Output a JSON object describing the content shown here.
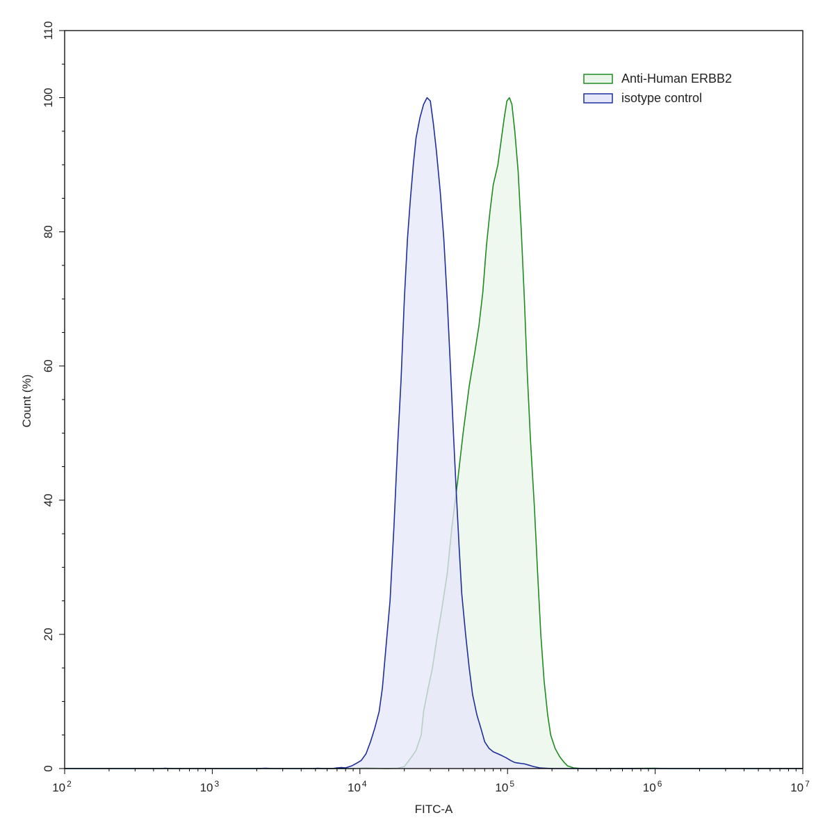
{
  "chart_data": {
    "type": "area",
    "xlabel": "FITC-A",
    "ylabel": "Count  (%)",
    "x_scale": "log",
    "xlim": [
      100,
      10000000
    ],
    "ylim": [
      0,
      110
    ],
    "x_ticks": [
      {
        "value": 100,
        "base": "10",
        "exp": "2"
      },
      {
        "value": 1000,
        "base": "10",
        "exp": "3"
      },
      {
        "value": 10000,
        "base": "10",
        "exp": "4"
      },
      {
        "value": 100000,
        "base": "10",
        "exp": "5"
      },
      {
        "value": 1000000,
        "base": "10",
        "exp": "6"
      },
      {
        "value": 10000000,
        "base": "10",
        "exp": "7"
      }
    ],
    "y_ticks": [
      "0",
      "20",
      "40",
      "60",
      "80",
      "100",
      "110"
    ],
    "grid": false,
    "legend_position": "top-right",
    "series": [
      {
        "name": "Anti-Human ERBB2",
        "stroke": "#1f8a1f",
        "fill": "#e8f5e8",
        "points": [
          [
            100,
            0
          ],
          [
            6500,
            0
          ],
          [
            9000,
            0
          ],
          [
            11000,
            0.1
          ],
          [
            15000,
            0
          ],
          [
            18000,
            0.05
          ],
          [
            20000,
            0.3
          ],
          [
            22000,
            1.5
          ],
          [
            24000,
            2.7
          ],
          [
            26000,
            5
          ],
          [
            27000,
            8.5
          ],
          [
            29000,
            12
          ],
          [
            31000,
            15
          ],
          [
            33000,
            19
          ],
          [
            36000,
            24
          ],
          [
            39000,
            29
          ],
          [
            42000,
            36
          ],
          [
            46000,
            43
          ],
          [
            50000,
            50
          ],
          [
            55000,
            57
          ],
          [
            60000,
            62
          ],
          [
            64000,
            66
          ],
          [
            68000,
            71
          ],
          [
            72000,
            78
          ],
          [
            76000,
            83
          ],
          [
            80000,
            87
          ],
          [
            86000,
            90
          ],
          [
            91000,
            94
          ],
          [
            95000,
            97
          ],
          [
            99000,
            99.5
          ],
          [
            103000,
            100
          ],
          [
            107000,
            99
          ],
          [
            112000,
            95
          ],
          [
            118000,
            89
          ],
          [
            124000,
            80
          ],
          [
            130000,
            70
          ],
          [
            136000,
            59
          ],
          [
            143000,
            49
          ],
          [
            152000,
            39
          ],
          [
            160000,
            29
          ],
          [
            168000,
            20
          ],
          [
            177000,
            13
          ],
          [
            187000,
            8
          ],
          [
            196000,
            5
          ],
          [
            210000,
            3
          ],
          [
            225000,
            1.8
          ],
          [
            240000,
            1
          ],
          [
            255000,
            0.4
          ],
          [
            280000,
            0.1
          ],
          [
            320000,
            0
          ],
          [
            500000,
            0
          ],
          [
            1000000,
            0.05
          ],
          [
            1200000,
            0
          ],
          [
            10000000,
            0
          ]
        ]
      },
      {
        "name": "isotype control",
        "stroke": "#1c2e9a",
        "fill": "#e6e7f9",
        "points": [
          [
            100,
            0
          ],
          [
            450,
            0
          ],
          [
            480,
            0.05
          ],
          [
            520,
            0
          ],
          [
            2000,
            0
          ],
          [
            2300,
            0.05
          ],
          [
            2600,
            0
          ],
          [
            4800,
            0
          ],
          [
            5200,
            0.05
          ],
          [
            5600,
            0
          ],
          [
            6500,
            0
          ],
          [
            7000,
            0.1
          ],
          [
            7500,
            0.15
          ],
          [
            8000,
            0.1
          ],
          [
            8800,
            0.4
          ],
          [
            9500,
            0.8
          ],
          [
            10200,
            1.2
          ],
          [
            11000,
            2.2
          ],
          [
            11800,
            4
          ],
          [
            12600,
            6
          ],
          [
            13500,
            8.5
          ],
          [
            14200,
            12
          ],
          [
            15000,
            18
          ],
          [
            16000,
            25
          ],
          [
            17000,
            36
          ],
          [
            18000,
            48
          ],
          [
            19000,
            58
          ],
          [
            20000,
            70
          ],
          [
            21000,
            79
          ],
          [
            22000,
            85
          ],
          [
            23000,
            90
          ],
          [
            24000,
            94
          ],
          [
            25500,
            97
          ],
          [
            27000,
            99
          ],
          [
            28500,
            100
          ],
          [
            30000,
            99.5
          ],
          [
            31500,
            96
          ],
          [
            33000,
            92
          ],
          [
            35000,
            86
          ],
          [
            37000,
            79
          ],
          [
            39000,
            70
          ],
          [
            41000,
            60
          ],
          [
            43000,
            50
          ],
          [
            45000,
            41
          ],
          [
            47000,
            33
          ],
          [
            49000,
            26
          ],
          [
            52000,
            20
          ],
          [
            55000,
            15
          ],
          [
            58000,
            11
          ],
          [
            62000,
            8
          ],
          [
            66000,
            6
          ],
          [
            70000,
            4
          ],
          [
            75000,
            3
          ],
          [
            80000,
            2.5
          ],
          [
            86000,
            2.2
          ],
          [
            92000,
            1.9
          ],
          [
            98000,
            1.6
          ],
          [
            105000,
            1.2
          ],
          [
            112000,
            0.9
          ],
          [
            120000,
            0.8
          ],
          [
            130000,
            0.7
          ],
          [
            140000,
            0.5
          ],
          [
            150000,
            0.3
          ],
          [
            165000,
            0.1
          ],
          [
            180000,
            0.05
          ],
          [
            200000,
            0
          ],
          [
            10000000,
            0
          ]
        ]
      }
    ]
  }
}
